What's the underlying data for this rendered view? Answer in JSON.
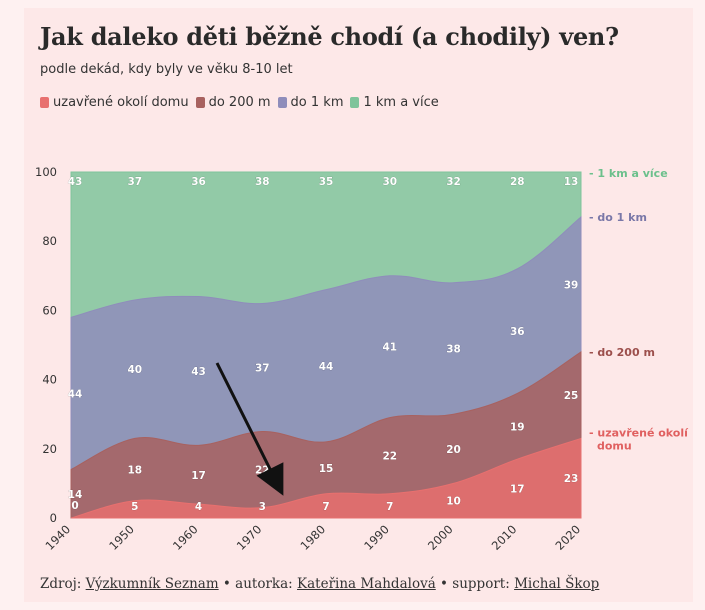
{
  "header": {
    "title": "Jak daleko děti běžně chodí (a chodily) ven?",
    "subtitle": "podle dekád, kdy byly ve věku 8-10 let"
  },
  "legend": [
    {
      "label": "uzavřené okolí domu",
      "color": "#e8706f"
    },
    {
      "label": "do 200 m",
      "color": "#a8615f"
    },
    {
      "label": "do 1 km",
      "color": "#8f8dbb"
    },
    {
      "label": "1 km a více",
      "color": "#7fc49b"
    }
  ],
  "footer": {
    "source_prefix": "Zdroj: ",
    "source_link": "Výzkumník Seznam",
    "sep1": " • autorka: ",
    "author_link": "Kateřina Mahdalová",
    "sep2": " • support: ",
    "support_link": "Michal Škop"
  },
  "chart_data": {
    "type": "area",
    "stacked": true,
    "x": [
      1940,
      1950,
      1960,
      1970,
      1980,
      1990,
      2000,
      2010,
      2020
    ],
    "x_tick_labels": [
      "1940",
      "1950",
      "1960",
      "1970",
      "1980",
      "1990",
      "2000",
      "2010",
      "2020"
    ],
    "ylim": [
      0,
      100
    ],
    "y_ticks": [
      0,
      20,
      40,
      60,
      80,
      100
    ],
    "series": [
      {
        "name": "uzavřené okolí domu",
        "end_label": "uzavřené okolí domu",
        "color": "#e8706f",
        "label_color": "#e06060",
        "values": [
          0,
          5,
          4,
          3,
          7,
          7,
          10,
          17,
          23
        ]
      },
      {
        "name": "do 200 m",
        "end_label": "do 200 m",
        "color": "#a8615f",
        "label_color": "#9c4f4c",
        "values": [
          14,
          18,
          17,
          22,
          15,
          22,
          20,
          19,
          25
        ]
      },
      {
        "name": "do 1 km",
        "end_label": "do 1 km",
        "color": "#8f8dbb",
        "label_color": "#7a78a8",
        "values": [
          44,
          40,
          43,
          37,
          44,
          41,
          38,
          36,
          39
        ]
      },
      {
        "name": "1 km a více",
        "end_label": "1 km a více",
        "color": "#7fc49b",
        "label_color": "#6cc08c",
        "values": [
          43,
          37,
          36,
          38,
          35,
          30,
          32,
          28,
          13
        ]
      }
    ],
    "annotation": "arrow pointing down toward 1970",
    "grid": false,
    "legend_position": "top-left"
  }
}
